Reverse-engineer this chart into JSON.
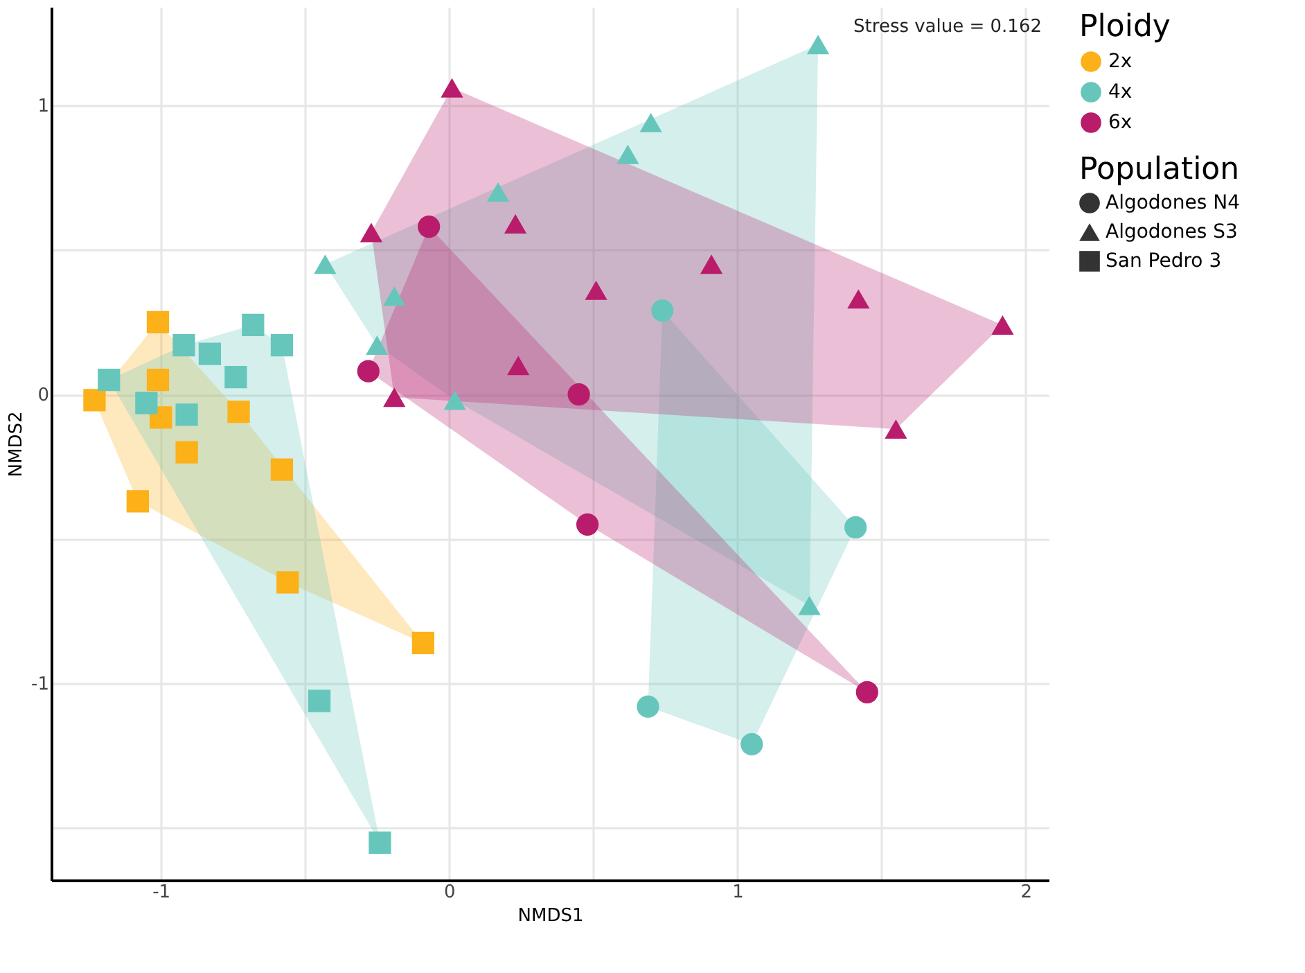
{
  "chart_data": {
    "type": "scatter",
    "xlabel": "NMDS1",
    "ylabel": "NMDS2",
    "legend_title": "Ploidy",
    "xlim": [
      -1.38,
      2.08
    ],
    "ylim": [
      -1.68,
      1.34
    ],
    "xticks": [
      -1,
      {
        "value": -0.5,
        "label": null
      },
      0,
      {
        "value": 0.5,
        "label": null
      },
      1,
      {
        "value": 1.5,
        "label": null
      },
      2
    ],
    "yticks": [
      {
        "value": -1.5,
        "label": null
      },
      -1,
      {
        "value": -0.5,
        "label": null
      },
      0,
      {
        "value": 0.5,
        "label": null
      },
      1
    ],
    "grid": true,
    "legend": "right",
    "annotations": [
      "Stress value = 0.162",
      "Population",
      "Algodones N4",
      "Algodones S3",
      "San Pedro 3"
    ],
    "series": [
      {
        "name": "2x",
        "color": "#fbb117",
        "marker": "square",
        "x": [
          -1.01,
          -1.01,
          -1.23,
          -1.0,
          -0.91,
          -0.73,
          -1.08,
          -0.58,
          -0.56,
          -0.09
        ],
        "values": [
          0.25,
          0.05,
          -0.02,
          -0.08,
          -0.2,
          -0.06,
          -0.37,
          -0.26,
          -0.65,
          -0.86
        ]
      },
      {
        "name": "4x",
        "color": "#66c6bc",
        "marker": "square",
        "x": [
          -1.18,
          -0.68,
          -0.92,
          -0.83,
          -0.58,
          -0.74,
          -1.05,
          -0.91,
          -0.45,
          -0.24
        ],
        "values": [
          0.05,
          0.24,
          0.17,
          0.14,
          0.17,
          0.06,
          -0.03,
          -0.07,
          -1.06,
          -1.55
        ]
      },
      {
        "color": "#66c6bc",
        "marker": "triangle",
        "x": [
          0.17,
          -0.43,
          -0.19,
          -0.25,
          0.02,
          0.7,
          0.62,
          1.28,
          1.25
        ],
        "values": [
          0.7,
          0.45,
          0.34,
          0.17,
          -0.02,
          0.94,
          0.83,
          1.21,
          -0.73
        ]
      },
      {
        "color": "#66c6bc",
        "marker": "circle",
        "x": [
          1.41,
          0.69,
          1.05,
          0.74
        ],
        "values": [
          -0.46,
          -1.08,
          -1.21,
          0.29
        ]
      },
      {
        "name": "6x",
        "color": "#b81c6a",
        "marker": "triangle",
        "x": [
          0.01,
          -0.27,
          0.23,
          0.51,
          0.24,
          -0.19,
          0.91,
          1.42,
          1.92,
          1.55
        ],
        "values": [
          1.06,
          0.56,
          0.59,
          0.36,
          0.1,
          -0.01,
          0.45,
          0.33,
          0.24,
          -0.12
        ]
      },
      {
        "color": "#b81c6a",
        "marker": "circle",
        "x": [
          -0.07,
          -0.28,
          0.45,
          0.48,
          1.45
        ],
        "values": [
          0.58,
          0.08,
          0.0,
          -0.45,
          -1.03
        ]
      }
    ]
  }
}
